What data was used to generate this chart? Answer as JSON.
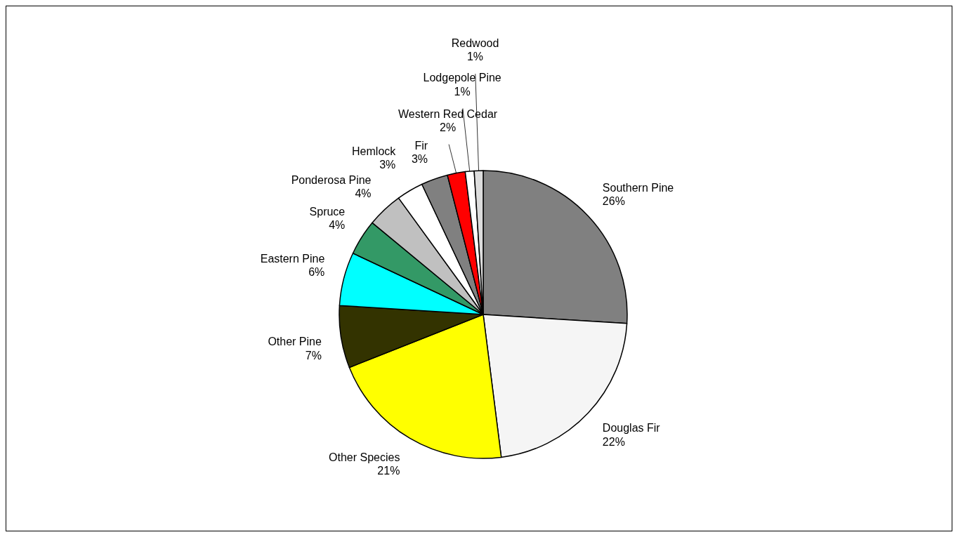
{
  "chart_data": {
    "type": "pie",
    "categories": [
      "Southern Pine",
      "Douglas Fir",
      "Other Species",
      "Other Pine",
      "Eastern Pine",
      "Spruce",
      "Ponderosa Pine",
      "Hemlock",
      "Fir",
      "Western Red Cedar",
      "Lodgepole Pine",
      "Redwood"
    ],
    "values": [
      26,
      22,
      21,
      7,
      6,
      4,
      4,
      3,
      3,
      2,
      1,
      1
    ],
    "colors": [
      "#808080",
      "#f5f5f5",
      "#ffff00",
      "#333300",
      "#00ffff",
      "#339966",
      "#c0c0c0",
      "#ffffff",
      "#808080",
      "#ff0000",
      "#ffffff",
      "#dddddd"
    ],
    "value_labels": [
      "26%",
      "22%",
      "21%",
      "7%",
      "6%",
      "4%",
      "4%",
      "3%",
      "3%",
      "2%",
      "1%",
      "1%"
    ]
  }
}
